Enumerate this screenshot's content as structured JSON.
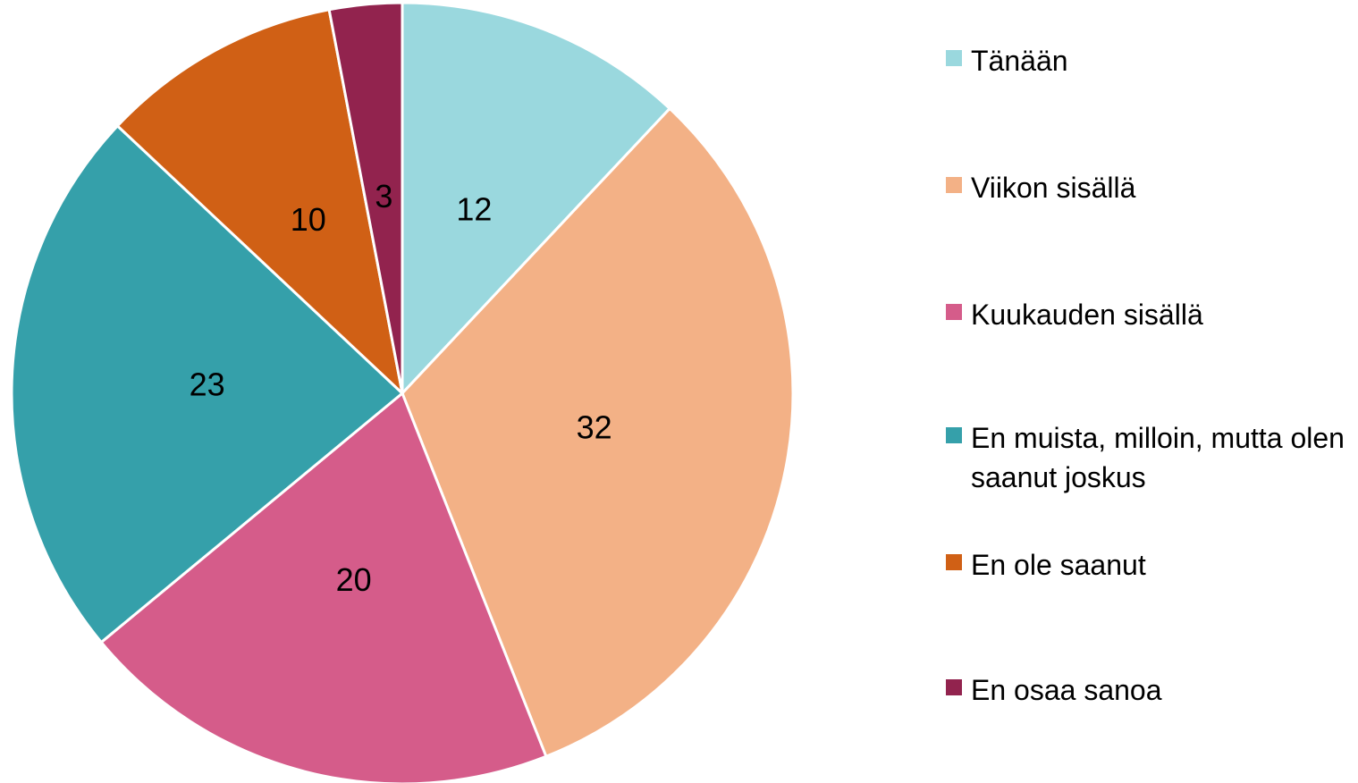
{
  "chart_data": {
    "type": "pie",
    "categories": [
      "Tänään",
      "Viikon sisällä",
      "Kuukauden sisällä",
      "En muista, milloin, mutta olen saanut joskus",
      "En ole saanut",
      "En osaa sanoa"
    ],
    "values": [
      12,
      32,
      20,
      23,
      10,
      3
    ],
    "colors": [
      "#9ad8de",
      "#f3b186",
      "#d55c8a",
      "#35a0aa",
      "#d06015",
      "#92234e"
    ]
  }
}
